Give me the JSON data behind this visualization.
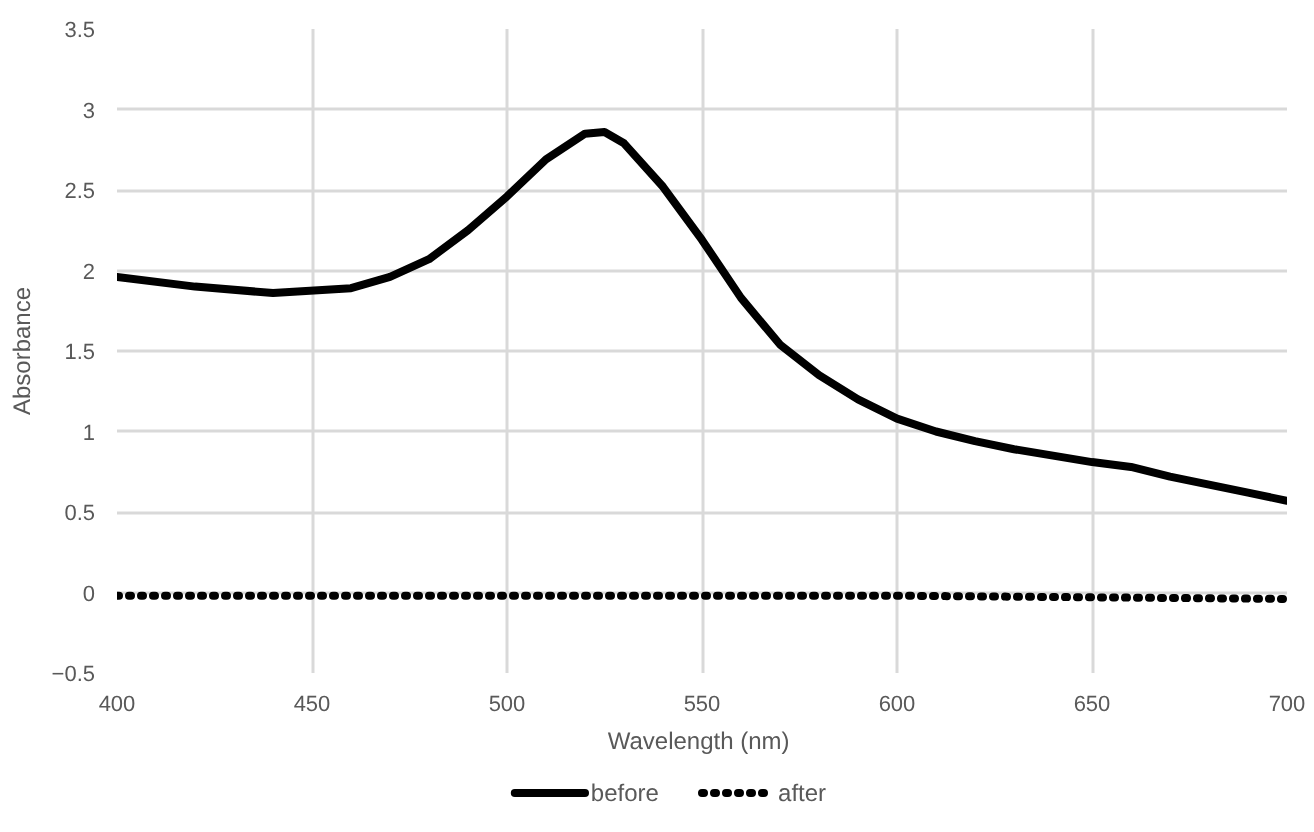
{
  "chart_data": {
    "type": "line",
    "xlabel": "Wavelength  (nm)",
    "ylabel": "Absorbance",
    "xlim": [
      400,
      700
    ],
    "ylim": [
      -0.5,
      3.5
    ],
    "xticks": [
      400,
      450,
      500,
      550,
      600,
      650,
      700
    ],
    "yticks": [
      -0.5,
      0,
      0.5,
      1,
      1.5,
      2,
      2.5,
      3,
      3.5
    ],
    "grid": true,
    "legend": "bottom",
    "series": [
      {
        "name": "before",
        "color": "#000000",
        "line_style": "solid",
        "x": [
          400,
          420,
          440,
          460,
          470,
          480,
          490,
          500,
          510,
          520,
          525,
          530,
          540,
          550,
          560,
          570,
          580,
          590,
          600,
          610,
          620,
          630,
          640,
          650,
          660,
          670,
          680,
          690,
          700
        ],
        "values": [
          1.96,
          1.9,
          1.86,
          1.89,
          1.96,
          2.07,
          2.25,
          2.46,
          2.69,
          2.85,
          2.86,
          2.79,
          2.52,
          2.19,
          1.83,
          1.54,
          1.35,
          1.2,
          1.08,
          1.0,
          0.94,
          0.89,
          0.85,
          0.81,
          0.78,
          0.72,
          0.67,
          0.62,
          0.57
        ]
      },
      {
        "name": "after",
        "color": "#000000",
        "line_style": "dotted",
        "x": [
          400,
          500,
          600,
          700
        ],
        "values": [
          -0.02,
          -0.02,
          -0.02,
          -0.04
        ]
      }
    ]
  }
}
